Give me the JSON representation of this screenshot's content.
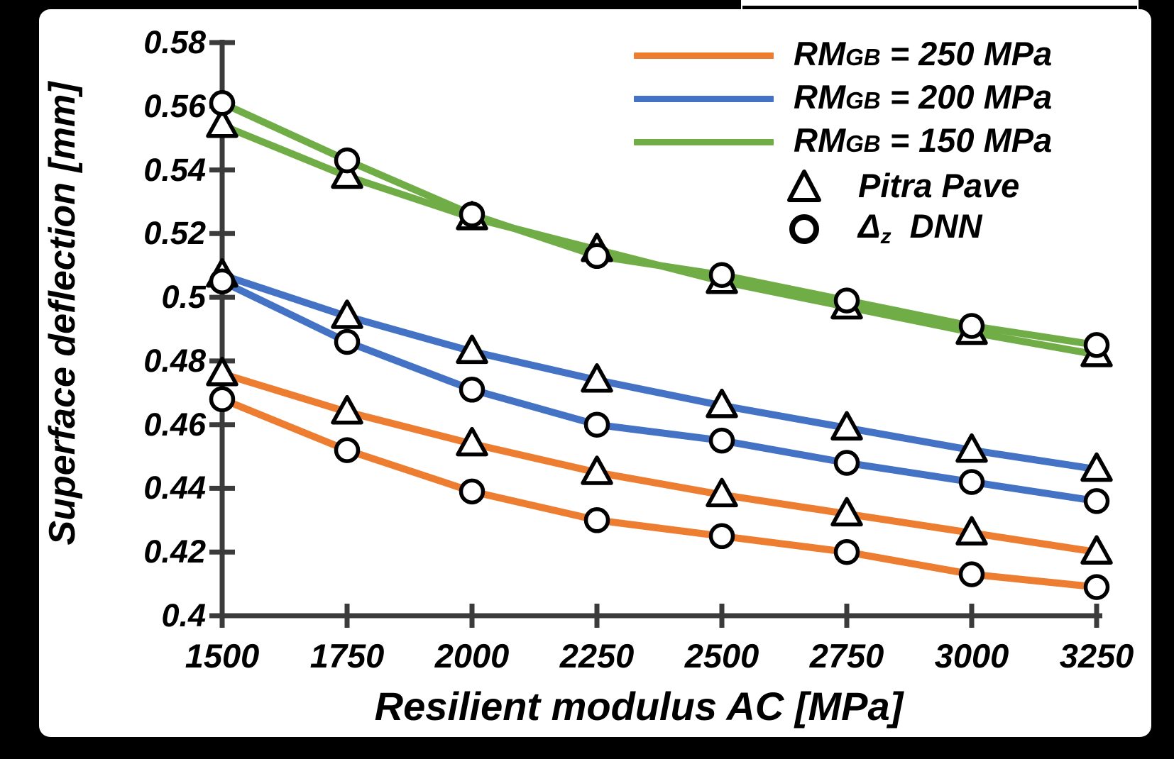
{
  "chart_data": {
    "type": "line",
    "title": "",
    "xlabel": "Resilient modulus AC [MPa]",
    "ylabel": "Superface deflection [mm]",
    "x": [
      1500,
      1750,
      2000,
      2250,
      2500,
      2750,
      3000,
      3250
    ],
    "xlim": [
      1500,
      3250
    ],
    "ylim": [
      0.4,
      0.58
    ],
    "x_ticks": [
      1500,
      1750,
      2000,
      2250,
      2500,
      2750,
      3000,
      3250
    ],
    "x_tick_labels": [
      "1500",
      "1750",
      "2000",
      "2250",
      "2500",
      "2750",
      "3000",
      "3250"
    ],
    "y_ticks": [
      0.58,
      0.56,
      0.54,
      0.52,
      0.5,
      0.48,
      0.46,
      0.44,
      0.42,
      0.4
    ],
    "y_tick_labels": [
      "0.58",
      "0.56",
      "0.54",
      "0.52",
      "0.5",
      "0.48",
      "0.46",
      "0.44",
      "0.42",
      "0.4"
    ],
    "grid": false,
    "legend_position": "top-right",
    "series": [
      {
        "label": "RMGB = 250 MPa",
        "method": "Pitra Pave",
        "marker": "triangle",
        "color": "#ED7D31",
        "values": [
          0.476,
          0.464,
          0.454,
          0.445,
          0.438,
          0.432,
          0.426,
          0.42
        ]
      },
      {
        "label": "RMGB = 250 MPa",
        "method": "Δz DNN",
        "marker": "circle",
        "color": "#ED7D31",
        "values": [
          0.468,
          0.452,
          0.439,
          0.43,
          0.425,
          0.42,
          0.413,
          0.409
        ]
      },
      {
        "label": "RMGB = 200 MPa",
        "method": "Pitra Pave",
        "marker": "triangle",
        "color": "#4472C4",
        "values": [
          0.507,
          0.494,
          0.483,
          0.474,
          0.466,
          0.459,
          0.452,
          0.446
        ]
      },
      {
        "label": "RMGB = 200 MPa",
        "method": "Δz DNN",
        "marker": "circle",
        "color": "#4472C4",
        "values": [
          0.505,
          0.486,
          0.471,
          0.46,
          0.455,
          0.448,
          0.442,
          0.436
        ]
      },
      {
        "label": "RMGB = 150 MPa",
        "method": "Pitra Pave",
        "marker": "triangle",
        "color": "#70AD47",
        "values": [
          0.554,
          0.538,
          0.525,
          0.515,
          0.505,
          0.497,
          0.489,
          0.482
        ]
      },
      {
        "label": "RMGB = 150 MPa",
        "method": "Δz DNN",
        "marker": "circle",
        "color": "#70AD47",
        "values": [
          0.561,
          0.543,
          0.526,
          0.513,
          0.507,
          0.499,
          0.491,
          0.485
        ]
      }
    ],
    "legend": {
      "entries": [
        {
          "type": "line",
          "color": "#ED7D31",
          "label": "RMGB = 250 MPa",
          "prefix": "RM",
          "sub": "GB",
          "suffix": " = 250 MPa"
        },
        {
          "type": "line",
          "color": "#4472C4",
          "label": "RMGB = 200 MPa",
          "prefix": "RM",
          "sub": "GB",
          "suffix": " = 200 MPa"
        },
        {
          "type": "line",
          "color": "#70AD47",
          "label": "RMGB = 150 MPa",
          "prefix": "RM",
          "sub": "GB",
          "suffix": " = 150 MPa"
        },
        {
          "type": "marker",
          "marker": "triangle",
          "label": "Pitra Pave",
          "prefix": "",
          "sub": "",
          "suffix": "Pitra Pave"
        },
        {
          "type": "marker",
          "marker": "circle",
          "label": "Δz DNN",
          "prefix": "Δ",
          "sub": "z",
          "suffix": "  DNN"
        }
      ]
    },
    "style": {
      "axis_color": "#3B3B3B",
      "marker_stroke": "#000000",
      "marker_fill": "#FFFFFF",
      "background": "#000000",
      "panel": "#FFFFFF"
    }
  }
}
